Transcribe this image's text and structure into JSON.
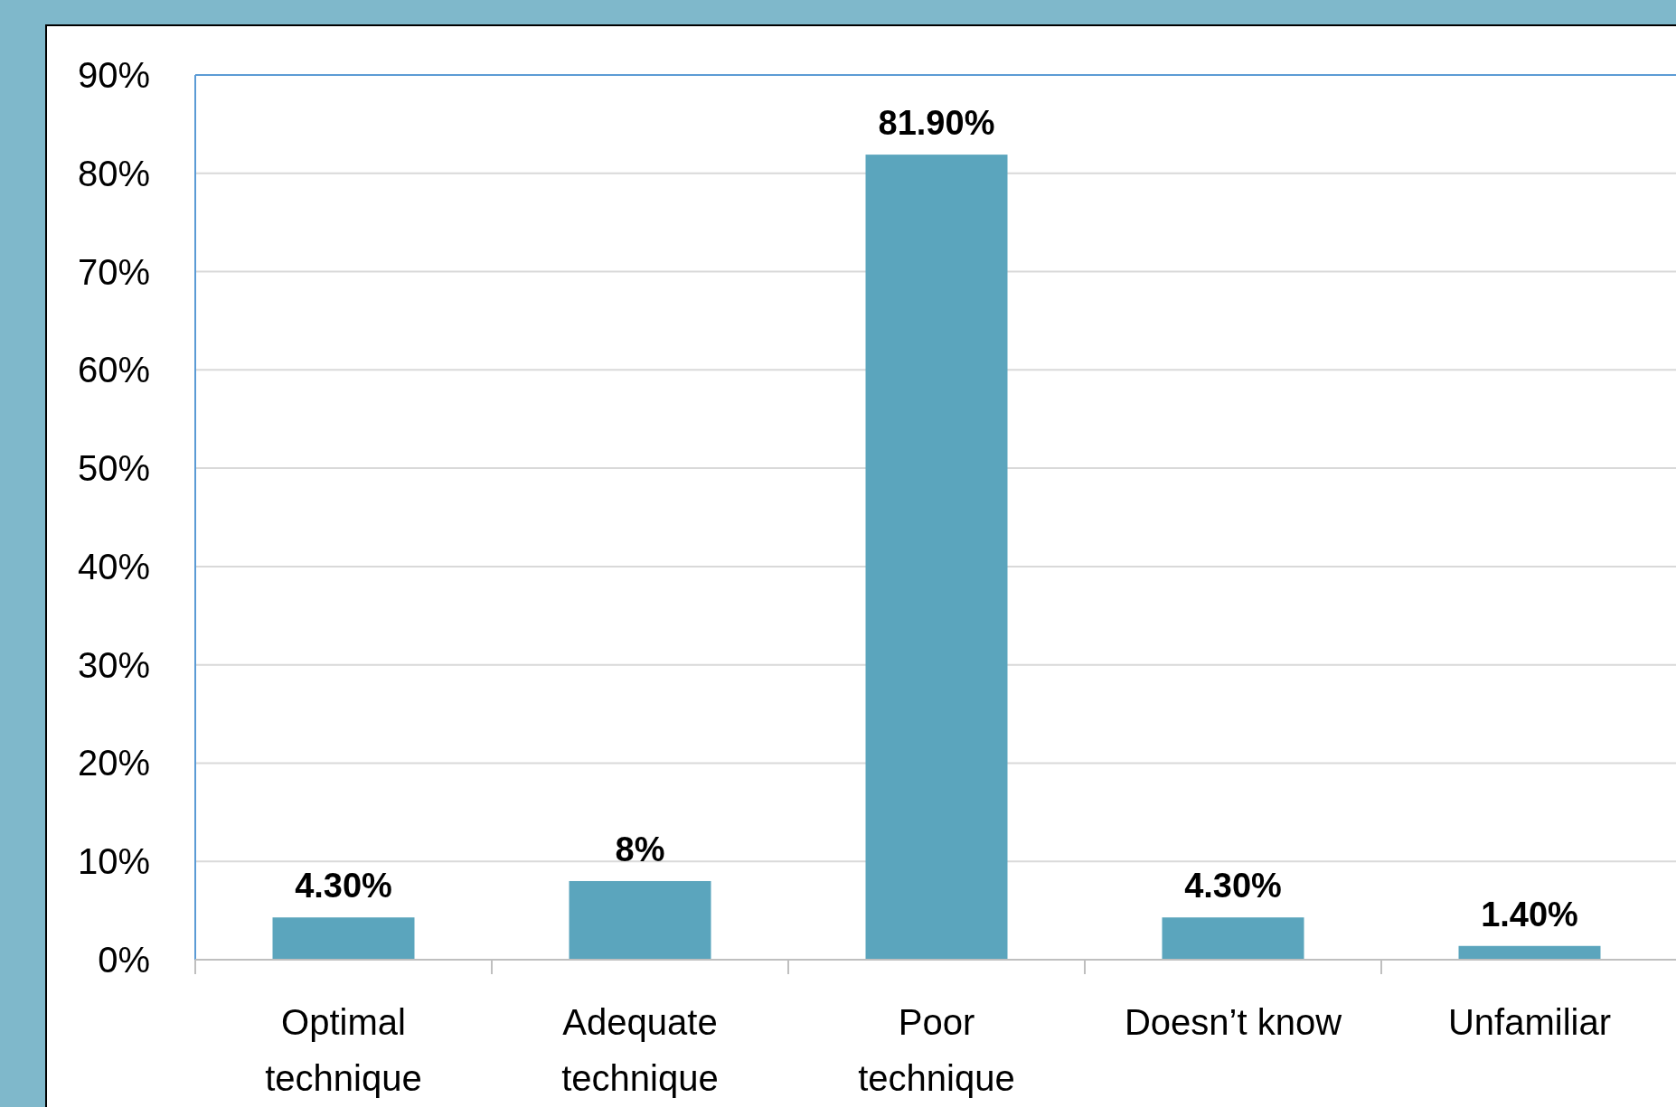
{
  "chart_data": {
    "type": "bar",
    "categories": [
      "Optimal technique",
      "Adequate technique",
      "Poor technique",
      "Doesn’t know",
      "Unfamiliar"
    ],
    "values": [
      4.3,
      8,
      81.9,
      4.3,
      1.4
    ],
    "value_labels": [
      "4.30%",
      "8%",
      "81.90%",
      "4.30%",
      "1.40%"
    ],
    "color": "#5ba5bd",
    "ylim": [
      0,
      90
    ],
    "yticks": [
      {
        "value": 0,
        "label": "0%"
      },
      {
        "value": 10,
        "label": "10%"
      },
      {
        "value": 20,
        "label": "20%"
      },
      {
        "value": 30,
        "label": "30%"
      },
      {
        "value": 40,
        "label": "40%"
      },
      {
        "value": 50,
        "label": "50%"
      },
      {
        "value": 60,
        "label": "60%"
      },
      {
        "value": 70,
        "label": "70%"
      },
      {
        "value": 80,
        "label": "80%"
      },
      {
        "value": 90,
        "label": "90%"
      }
    ],
    "grid": "y"
  }
}
